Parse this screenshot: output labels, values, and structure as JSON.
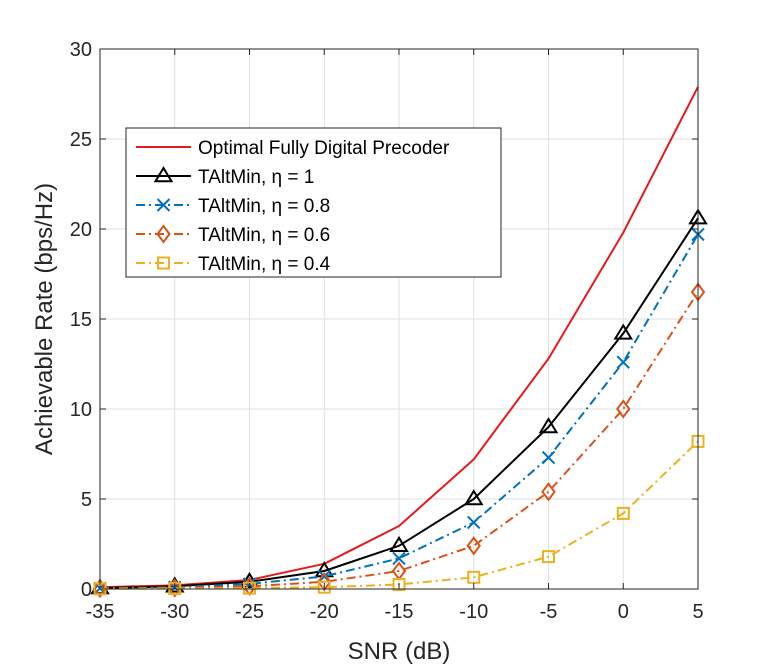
{
  "chart_data": {
    "type": "line",
    "title": "",
    "xlabel": "SNR (dB)",
    "ylabel": "Achievable Rate (bps/Hz)",
    "xlim": [
      -35,
      5
    ],
    "ylim": [
      0,
      30
    ],
    "xticks": [
      -35,
      -30,
      -25,
      -20,
      -15,
      -10,
      -5,
      0,
      5
    ],
    "xtick_labels": [
      "-35",
      "-30",
      "-25",
      "-20",
      "-15",
      "-10",
      "-5",
      "0",
      "5"
    ],
    "yticks": [
      0,
      5,
      10,
      15,
      20,
      25,
      30
    ],
    "ytick_labels": [
      "0",
      "5",
      "10",
      "15",
      "20",
      "25",
      "30"
    ],
    "grid": true,
    "legend_position": "upper-left",
    "x": [
      -35,
      -30,
      -25,
      -20,
      -15,
      -10,
      -5,
      0,
      5
    ],
    "series": [
      {
        "name": "Optimal Fully Digital Precoder",
        "legend_prefix": "Optimal Fully Digital Precoder",
        "eta_text": "",
        "color": "#e41a1c",
        "dash": "solid",
        "marker": "none",
        "values": [
          0.1,
          0.2,
          0.5,
          1.4,
          3.5,
          7.2,
          12.8,
          19.8,
          27.9
        ]
      },
      {
        "name": "TAltMin, η = 1",
        "legend_prefix": "TAltMin, ",
        "eta_text": "η = 1",
        "color": "#000000",
        "dash": "solid",
        "marker": "triangle",
        "values": [
          0.05,
          0.15,
          0.4,
          1.0,
          2.4,
          5.0,
          9.0,
          14.2,
          20.6
        ]
      },
      {
        "name": "TAltMin, η = 0.8",
        "legend_prefix": "TAltMin, ",
        "eta_text": "η = 0.8",
        "color": "#0072bd",
        "dash": "dashdot",
        "marker": "x",
        "values": [
          0.04,
          0.1,
          0.28,
          0.7,
          1.7,
          3.7,
          7.3,
          12.6,
          19.7
        ]
      },
      {
        "name": "TAltMin, η = 0.6",
        "legend_prefix": "TAltMin, ",
        "eta_text": "η = 0.6",
        "color": "#d95319",
        "dash": "dashdot",
        "marker": "diamond",
        "values": [
          0.03,
          0.06,
          0.15,
          0.4,
          1.0,
          2.4,
          5.4,
          10.0,
          16.5
        ]
      },
      {
        "name": "TAltMin, η = 0.4",
        "legend_prefix": "TAltMin, ",
        "eta_text": "η = 0.4",
        "color": "#edb120",
        "dash": "dashdot",
        "marker": "square",
        "values": [
          0.01,
          0.02,
          0.05,
          0.1,
          0.25,
          0.65,
          1.8,
          4.2,
          8.2
        ]
      }
    ]
  }
}
